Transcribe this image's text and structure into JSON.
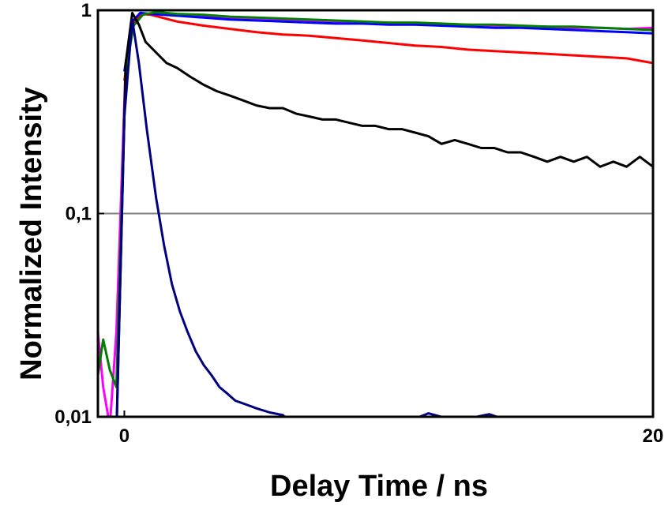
{
  "chart_data": {
    "type": "line",
    "title": "",
    "xlabel": "Delay Time / ns",
    "ylabel": "Normalized Intensity",
    "xlim": [
      -1,
      20
    ],
    "ylim": [
      0.01,
      1
    ],
    "y_scale": "log",
    "x_ticks": [
      0,
      20
    ],
    "x_tick_labels": [
      "0",
      "20"
    ],
    "y_ticks": [
      0.01,
      0.1,
      1
    ],
    "y_tick_labels": [
      "0,01",
      "0,1",
      "1"
    ],
    "gridlines_y": [
      0.1,
      1
    ],
    "legend": "none",
    "series": [
      {
        "color": "#ff00ff",
        "points": [
          [
            -1,
            0.026
          ],
          [
            -0.8,
            0.014
          ],
          [
            -0.55,
            0.009
          ],
          [
            -0.3,
            0.026
          ],
          [
            0.05,
            0.55
          ],
          [
            0.35,
            0.86
          ],
          [
            0.7,
            0.96
          ],
          [
            1.2,
            0.96
          ],
          [
            2,
            0.95
          ],
          [
            3,
            0.93
          ],
          [
            4,
            0.92
          ],
          [
            5,
            0.91
          ],
          [
            6,
            0.9
          ],
          [
            7,
            0.89
          ],
          [
            8,
            0.88
          ],
          [
            9,
            0.87
          ],
          [
            10,
            0.86
          ],
          [
            11,
            0.86
          ],
          [
            12,
            0.85
          ],
          [
            13,
            0.85
          ],
          [
            14,
            0.84
          ],
          [
            15,
            0.83
          ],
          [
            16,
            0.83
          ],
          [
            17,
            0.82
          ],
          [
            18,
            0.82
          ],
          [
            19,
            0.81
          ],
          [
            20,
            0.82
          ]
        ]
      },
      {
        "color": "#ff0000",
        "points": [
          [
            0,
            0.45
          ],
          [
            0.3,
            0.85
          ],
          [
            0.6,
            0.96
          ],
          [
            1,
            0.95
          ],
          [
            2,
            0.88
          ],
          [
            3,
            0.84
          ],
          [
            4,
            0.81
          ],
          [
            5,
            0.78
          ],
          [
            6,
            0.76
          ],
          [
            7,
            0.75
          ],
          [
            8,
            0.73
          ],
          [
            9,
            0.71
          ],
          [
            10,
            0.69
          ],
          [
            11,
            0.67
          ],
          [
            12,
            0.66
          ],
          [
            13,
            0.64
          ],
          [
            14,
            0.63
          ],
          [
            15,
            0.62
          ],
          [
            16,
            0.61
          ],
          [
            17,
            0.6
          ],
          [
            18,
            0.59
          ],
          [
            19,
            0.58
          ],
          [
            20,
            0.55
          ]
        ]
      },
      {
        "color": "#0000ff",
        "points": [
          [
            0,
            0.5
          ],
          [
            0.3,
            0.88
          ],
          [
            0.6,
            0.97
          ],
          [
            1,
            0.96
          ],
          [
            2,
            0.94
          ],
          [
            3,
            0.92
          ],
          [
            4,
            0.9
          ],
          [
            5,
            0.89
          ],
          [
            6,
            0.88
          ],
          [
            7,
            0.87
          ],
          [
            8,
            0.86
          ],
          [
            9,
            0.86
          ],
          [
            10,
            0.85
          ],
          [
            11,
            0.85
          ],
          [
            12,
            0.84
          ],
          [
            13,
            0.83
          ],
          [
            14,
            0.82
          ],
          [
            15,
            0.82
          ],
          [
            16,
            0.81
          ],
          [
            17,
            0.8
          ],
          [
            18,
            0.79
          ],
          [
            19,
            0.78
          ],
          [
            20,
            0.77
          ]
        ]
      },
      {
        "color": "#007f00",
        "points": [
          [
            -1,
            0.016
          ],
          [
            -0.8,
            0.024
          ],
          [
            -0.55,
            0.017
          ],
          [
            -0.3,
            0.014
          ],
          [
            0.05,
            0.5
          ],
          [
            0.35,
            0.84
          ],
          [
            0.7,
            0.95
          ],
          [
            1.2,
            0.98
          ],
          [
            2,
            0.96
          ],
          [
            3,
            0.95
          ],
          [
            4,
            0.93
          ],
          [
            5,
            0.92
          ],
          [
            6,
            0.91
          ],
          [
            7,
            0.9
          ],
          [
            8,
            0.89
          ],
          [
            9,
            0.88
          ],
          [
            10,
            0.87
          ],
          [
            11,
            0.87
          ],
          [
            12,
            0.86
          ],
          [
            13,
            0.85
          ],
          [
            14,
            0.85
          ],
          [
            15,
            0.84
          ],
          [
            16,
            0.83
          ],
          [
            17,
            0.83
          ],
          [
            18,
            0.82
          ],
          [
            19,
            0.81
          ],
          [
            20,
            0.8
          ]
        ]
      },
      {
        "color": "#000000",
        "points": [
          [
            -0.3,
            0.008
          ],
          [
            0.05,
            0.55
          ],
          [
            0.3,
            0.97
          ],
          [
            0.55,
            0.85
          ],
          [
            0.8,
            0.7
          ],
          [
            1.2,
            0.62
          ],
          [
            1.6,
            0.55
          ],
          [
            2,
            0.52
          ],
          [
            2.5,
            0.47
          ],
          [
            3,
            0.43
          ],
          [
            3.5,
            0.4
          ],
          [
            4,
            0.38
          ],
          [
            4.5,
            0.36
          ],
          [
            5,
            0.34
          ],
          [
            5.5,
            0.33
          ],
          [
            6,
            0.33
          ],
          [
            6.5,
            0.31
          ],
          [
            7,
            0.3
          ],
          [
            7.5,
            0.29
          ],
          [
            8,
            0.29
          ],
          [
            8.5,
            0.28
          ],
          [
            9,
            0.27
          ],
          [
            9.5,
            0.27
          ],
          [
            10,
            0.26
          ],
          [
            10.5,
            0.26
          ],
          [
            11,
            0.25
          ],
          [
            11.5,
            0.24
          ],
          [
            12,
            0.22
          ],
          [
            12.5,
            0.23
          ],
          [
            13,
            0.22
          ],
          [
            13.5,
            0.21
          ],
          [
            14,
            0.21
          ],
          [
            14.5,
            0.2
          ],
          [
            15,
            0.2
          ],
          [
            15.5,
            0.19
          ],
          [
            16,
            0.18
          ],
          [
            16.5,
            0.19
          ],
          [
            17,
            0.18
          ],
          [
            17.5,
            0.19
          ],
          [
            18,
            0.17
          ],
          [
            18.5,
            0.18
          ],
          [
            19,
            0.17
          ],
          [
            19.5,
            0.19
          ],
          [
            20,
            0.17
          ]
        ]
      },
      {
        "color": "#000080",
        "points": [
          [
            -0.3,
            0.008
          ],
          [
            0,
            0.3
          ],
          [
            0.3,
            0.9
          ],
          [
            0.55,
            0.55
          ],
          [
            0.85,
            0.26
          ],
          [
            1.2,
            0.12
          ],
          [
            1.5,
            0.07
          ],
          [
            1.8,
            0.045
          ],
          [
            2.1,
            0.033
          ],
          [
            2.4,
            0.026
          ],
          [
            2.7,
            0.021
          ],
          [
            3,
            0.018
          ],
          [
            3.3,
            0.016
          ],
          [
            3.6,
            0.014
          ],
          [
            3.9,
            0.013
          ],
          [
            4.2,
            0.012
          ],
          [
            4.6,
            0.0115
          ],
          [
            5,
            0.011
          ],
          [
            5.5,
            0.0105
          ],
          [
            6,
            0.0102
          ],
          [
            6.4,
            0.009
          ],
          [
            7,
            0.0095
          ],
          [
            7.6,
            0.0088
          ],
          [
            8.4,
            0.0092
          ],
          [
            9.5,
            0.0095
          ],
          [
            11,
            0.0098
          ],
          [
            11.5,
            0.0104
          ],
          [
            12.5,
            0.0096
          ],
          [
            13,
            0.0098
          ],
          [
            13.8,
            0.0103
          ],
          [
            14.5,
            0.0096
          ],
          [
            16,
            0.0092
          ],
          [
            18,
            0.009
          ],
          [
            20,
            0.009
          ]
        ]
      }
    ]
  }
}
